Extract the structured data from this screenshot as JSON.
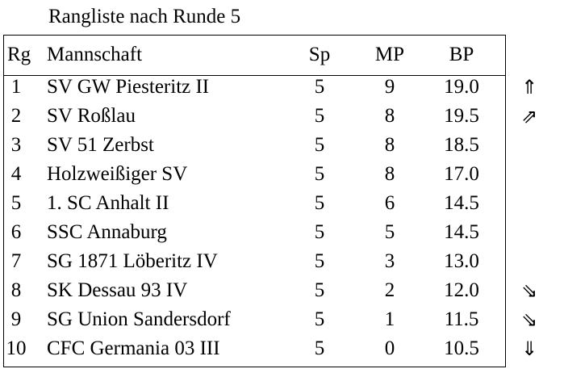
{
  "title": "Rangliste nach Runde 5",
  "headers": {
    "rank": "Rg",
    "team": "Mannschaft",
    "games": "Sp",
    "match_points": "MP",
    "board_points": "BP"
  },
  "rows": [
    {
      "rank": "1",
      "team": "SV GW Piesteritz II",
      "games": "5",
      "match_points": "9",
      "board_points": "19.0",
      "trend": "⇑"
    },
    {
      "rank": "2",
      "team": "SV Roßlau",
      "games": "5",
      "match_points": "8",
      "board_points": "19.5",
      "trend": "⇗"
    },
    {
      "rank": "3",
      "team": "SV 51 Zerbst",
      "games": "5",
      "match_points": "8",
      "board_points": "18.5",
      "trend": ""
    },
    {
      "rank": "4",
      "team": "Holzweißiger SV",
      "games": "5",
      "match_points": "8",
      "board_points": "17.0",
      "trend": ""
    },
    {
      "rank": "5",
      "team": "1. SC Anhalt II",
      "games": "5",
      "match_points": "6",
      "board_points": "14.5",
      "trend": ""
    },
    {
      "rank": "6",
      "team": "SSC Annaburg",
      "games": "5",
      "match_points": "5",
      "board_points": "14.5",
      "trend": ""
    },
    {
      "rank": "7",
      "team": "SG 1871 Löberitz IV",
      "games": "5",
      "match_points": "3",
      "board_points": "13.0",
      "trend": ""
    },
    {
      "rank": "8",
      "team": "SK Dessau 93 IV",
      "games": "5",
      "match_points": "2",
      "board_points": "12.0",
      "trend": "⇘"
    },
    {
      "rank": "9",
      "team": "SG Union Sandersdorf",
      "games": "5",
      "match_points": "1",
      "board_points": "11.5",
      "trend": "⇘"
    },
    {
      "rank": "10",
      "team": "CFC Germania 03 III",
      "games": "5",
      "match_points": "0",
      "board_points": "10.5",
      "trend": "⇓"
    }
  ]
}
